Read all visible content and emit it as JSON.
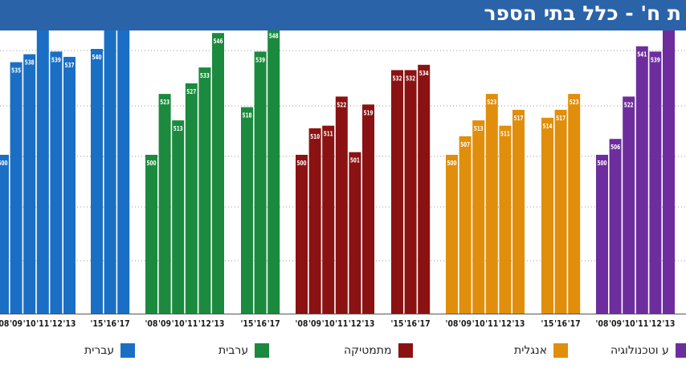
{
  "header": {
    "title": "ת ח' - כלל בתי הספר"
  },
  "chart_data": {
    "type": "bar",
    "title": "ת ח' - כלל בתי הספר",
    "grid": true,
    "ylim": [
      440,
      570
    ],
    "groups": [
      {
        "name": "עברית",
        "color": "#1a6fc4",
        "bars": [
          {
            "x": "'08",
            "value": 500
          },
          {
            "x": "'09",
            "value": 535
          },
          {
            "x": "'10",
            "value": 538
          },
          {
            "x": "'11",
            "value": 551
          },
          {
            "x": "'12",
            "value": 539
          },
          {
            "x": "'13",
            "value": 537
          },
          {
            "x": "'15",
            "value": 540
          },
          {
            "x": "'16",
            "value": 558
          },
          {
            "x": "'17",
            "value": 557
          }
        ]
      },
      {
        "name": "ערבית",
        "color": "#1b8a3e",
        "bars": [
          {
            "x": "'08",
            "value": 500
          },
          {
            "x": "'09",
            "value": 523
          },
          {
            "x": "'10",
            "value": 513
          },
          {
            "x": "'11",
            "value": 527
          },
          {
            "x": "'12",
            "value": 533
          },
          {
            "x": "'13",
            "value": 546
          },
          {
            "x": "'15",
            "value": 518
          },
          {
            "x": "'16",
            "value": 539
          },
          {
            "x": "'17",
            "value": 548
          }
        ]
      },
      {
        "name": "מתמטיקה",
        "color": "#8b1212",
        "bars": [
          {
            "x": "'08",
            "value": 500
          },
          {
            "x": "'09",
            "value": 510
          },
          {
            "x": "'10",
            "value": 511
          },
          {
            "x": "'11",
            "value": 522
          },
          {
            "x": "'12",
            "value": 501
          },
          {
            "x": "'13",
            "value": 519
          },
          {
            "x": "'15",
            "value": 532
          },
          {
            "x": "'16",
            "value": 532
          },
          {
            "x": "'17",
            "value": 534
          }
        ]
      },
      {
        "name": "אנגלית",
        "color": "#e08e0b",
        "bars": [
          {
            "x": "'08",
            "value": 500
          },
          {
            "x": "'09",
            "value": 507
          },
          {
            "x": "'10",
            "value": 513
          },
          {
            "x": "'11",
            "value": 523
          },
          {
            "x": "'12",
            "value": 511
          },
          {
            "x": "'13",
            "value": 517
          },
          {
            "x": "'15",
            "value": 514
          },
          {
            "x": "'16",
            "value": 517
          },
          {
            "x": "'17",
            "value": 523
          }
        ]
      },
      {
        "name": "ע וטכנולוגיה",
        "color": "#6e2d9e",
        "bars": [
          {
            "x": "'08",
            "value": 500
          },
          {
            "x": "'09",
            "value": 506
          },
          {
            "x": "'10",
            "value": 522
          },
          {
            "x": "'11",
            "value": 541
          },
          {
            "x": "'12",
            "value": 539
          },
          {
            "x": "'13",
            "value": 559
          }
        ]
      }
    ]
  }
}
